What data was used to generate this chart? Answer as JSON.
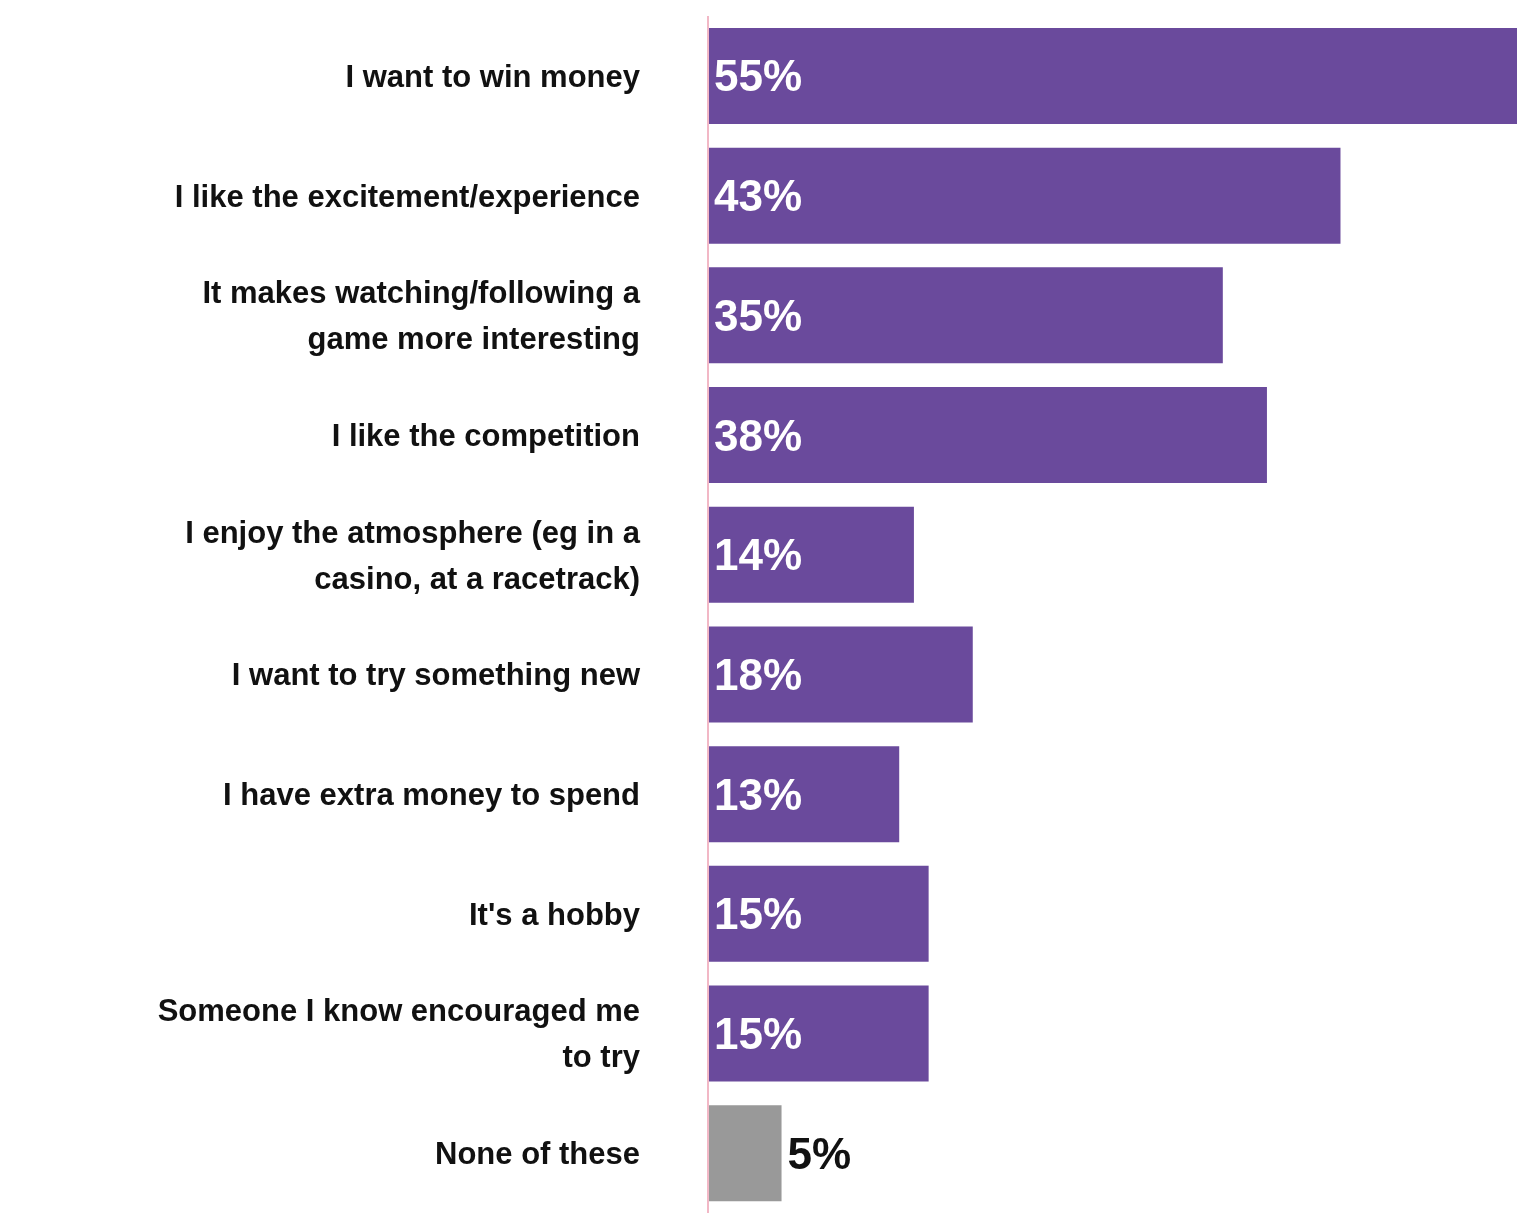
{
  "chart_data": {
    "type": "bar",
    "orientation": "horizontal",
    "categories": [
      "I want to win money",
      "I like the excitement/experience",
      "It makes watching/following a game more interesting",
      "I like the competition",
      "I enjoy the atmosphere (eg in a casino, at a racetrack)",
      "I want to try something new",
      "I have extra money to spend",
      "It's a hobby",
      "Someone I know encouraged me to try",
      "None of these"
    ],
    "values": [
      55,
      43,
      35,
      38,
      14,
      18,
      13,
      15,
      15,
      5
    ],
    "value_labels": [
      "55%",
      "43%",
      "35%",
      "38%",
      "14%",
      "18%",
      "13%",
      "15%",
      "15%",
      "5%"
    ],
    "colors": [
      "#6a4a9c",
      "#6a4a9c",
      "#6a4a9c",
      "#6a4a9c",
      "#6a4a9c",
      "#6a4a9c",
      "#6a4a9c",
      "#6a4a9c",
      "#6a4a9c",
      "#999999"
    ]
  }
}
